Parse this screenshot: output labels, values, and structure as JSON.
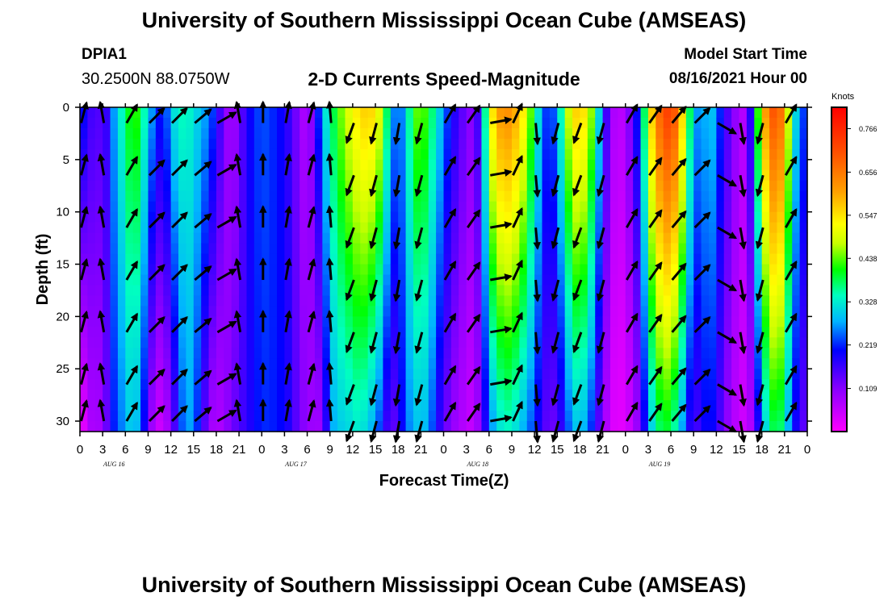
{
  "header": {
    "title": "University of Southern Mississippi Ocean Cube (AMSEAS)",
    "footer_title": "University of Southern Mississippi Ocean Cube (AMSEAS)",
    "station": "DPIA1",
    "coords": "30.2500N  88.0750W",
    "plot_title": "2-D Currents Speed-Magnitude",
    "model_label": "Model Start Time",
    "model_start": "08/16/2021 Hour 00"
  },
  "chart_data": {
    "type": "heatmap",
    "title": "2-D Currents Speed-Magnitude",
    "xlabel": "Forecast Time(Z)",
    "ylabel": "Depth (ft)",
    "x_ticks": [
      "0",
      "3",
      "6",
      "9",
      "12",
      "15",
      "18",
      "21",
      "0",
      "3",
      "6",
      "9",
      "12",
      "15",
      "18",
      "21",
      "0",
      "3",
      "6",
      "9",
      "12",
      "15",
      "18",
      "21",
      "0",
      "3",
      "6",
      "9",
      "12",
      "15",
      "18",
      "21",
      "0"
    ],
    "day_labels": [
      "AUG 16",
      "AUG 17",
      "AUG 18",
      "AUG 19"
    ],
    "y_ticks": [
      "0",
      "5",
      "10",
      "15",
      "20",
      "25",
      "30"
    ],
    "ylim": [
      0,
      31
    ],
    "hours_range": [
      0,
      96
    ],
    "colorbar": {
      "title": "Knots",
      "labels": [
        "0.766",
        "0.656",
        "0.547",
        "0.438",
        "0.328",
        "0.219",
        "0.109"
      ],
      "range": [
        0,
        0.82
      ]
    },
    "speed_profile": [
      {
        "hour": 0,
        "surface": 0.28,
        "bottom": 0.0
      },
      {
        "hour": 1,
        "surface": 0.13,
        "bottom": 0.05
      },
      {
        "hour": 2,
        "surface": 0.19,
        "bottom": 0.1
      },
      {
        "hour": 3,
        "surface": 0.11,
        "bottom": 0.06
      },
      {
        "hour": 4,
        "surface": 0.23,
        "bottom": 0.2
      },
      {
        "hour": 5,
        "surface": 0.31,
        "bottom": 0.23
      },
      {
        "hour": 6,
        "surface": 0.37,
        "bottom": 0.28
      },
      {
        "hour": 7,
        "surface": 0.44,
        "bottom": 0.31
      },
      {
        "hour": 8,
        "surface": 0.4,
        "bottom": 0.26
      },
      {
        "hour": 9,
        "surface": 0.3,
        "bottom": 0.13
      },
      {
        "hour": 10,
        "surface": 0.24,
        "bottom": 0.04
      },
      {
        "hour": 11,
        "surface": 0.19,
        "bottom": 0.05
      },
      {
        "hour": 12,
        "surface": 0.3,
        "bottom": 0.1
      },
      {
        "hour": 13,
        "surface": 0.34,
        "bottom": 0.2
      },
      {
        "hour": 14,
        "surface": 0.35,
        "bottom": 0.28
      },
      {
        "hour": 15,
        "surface": 0.32,
        "bottom": 0.26
      },
      {
        "hour": 16,
        "surface": 0.29,
        "bottom": 0.18
      },
      {
        "hour": 17,
        "surface": 0.26,
        "bottom": 0.1
      },
      {
        "hour": 18,
        "surface": 0.2,
        "bottom": 0.06
      },
      {
        "hour": 19,
        "surface": 0.12,
        "bottom": 0.09
      },
      {
        "hour": 20,
        "surface": 0.07,
        "bottom": 0.12
      },
      {
        "hour": 21,
        "surface": 0.12,
        "bottom": 0.15
      },
      {
        "hour": 22,
        "surface": 0.18,
        "bottom": 0.17
      },
      {
        "hour": 23,
        "surface": 0.22,
        "bottom": 0.2
      },
      {
        "hour": 24,
        "surface": 0.24,
        "bottom": 0.22
      },
      {
        "hour": 25,
        "surface": 0.23,
        "bottom": 0.22
      },
      {
        "hour": 26,
        "surface": 0.21,
        "bottom": 0.21
      },
      {
        "hour": 27,
        "surface": 0.19,
        "bottom": 0.2
      },
      {
        "hour": 28,
        "surface": 0.15,
        "bottom": 0.17
      },
      {
        "hour": 29,
        "surface": 0.1,
        "bottom": 0.12
      },
      {
        "hour": 30,
        "surface": 0.06,
        "bottom": 0.1
      },
      {
        "hour": 31,
        "surface": 0.15,
        "bottom": 0.08
      },
      {
        "hour": 32,
        "surface": 0.29,
        "bottom": 0.09
      },
      {
        "hour": 33,
        "surface": 0.36,
        "bottom": 0.26
      },
      {
        "hour": 34,
        "surface": 0.42,
        "bottom": 0.3
      },
      {
        "hour": 35,
        "surface": 0.48,
        "bottom": 0.3
      },
      {
        "hour": 36,
        "surface": 0.52,
        "bottom": 0.32
      },
      {
        "hour": 37,
        "surface": 0.56,
        "bottom": 0.33
      },
      {
        "hour": 38,
        "surface": 0.57,
        "bottom": 0.3
      },
      {
        "hour": 39,
        "surface": 0.55,
        "bottom": 0.26
      },
      {
        "hour": 40,
        "surface": 0.46,
        "bottom": 0.2
      },
      {
        "hour": 41,
        "surface": 0.3,
        "bottom": 0.12
      },
      {
        "hour": 42,
        "surface": 0.22,
        "bottom": 0.16
      },
      {
        "hour": 43,
        "surface": 0.3,
        "bottom": 0.24
      },
      {
        "hour": 44,
        "surface": 0.42,
        "bottom": 0.28
      },
      {
        "hour": 45,
        "surface": 0.46,
        "bottom": 0.3
      },
      {
        "hour": 46,
        "surface": 0.4,
        "bottom": 0.27
      },
      {
        "hour": 47,
        "surface": 0.34,
        "bottom": 0.2
      },
      {
        "hour": 48,
        "surface": 0.26,
        "bottom": 0.14
      },
      {
        "hour": 49,
        "surface": 0.2,
        "bottom": 0.1
      },
      {
        "hour": 50,
        "surface": 0.16,
        "bottom": 0.08
      },
      {
        "hour": 51,
        "surface": 0.12,
        "bottom": 0.06
      },
      {
        "hour": 52,
        "surface": 0.1,
        "bottom": 0.05
      },
      {
        "hour": 53,
        "surface": 0.22,
        "bottom": 0.12
      },
      {
        "hour": 54,
        "surface": 0.5,
        "bottom": 0.24
      },
      {
        "hour": 55,
        "surface": 0.6,
        "bottom": 0.3
      },
      {
        "hour": 56,
        "surface": 0.64,
        "bottom": 0.34
      },
      {
        "hour": 57,
        "surface": 0.62,
        "bottom": 0.33
      },
      {
        "hour": 58,
        "surface": 0.58,
        "bottom": 0.3
      },
      {
        "hour": 59,
        "surface": 0.5,
        "bottom": 0.26
      },
      {
        "hour": 60,
        "surface": 0.38,
        "bottom": 0.22
      },
      {
        "hour": 61,
        "surface": 0.26,
        "bottom": 0.16
      },
      {
        "hour": 62,
        "surface": 0.2,
        "bottom": 0.12
      },
      {
        "hour": 63,
        "surface": 0.28,
        "bottom": 0.14
      },
      {
        "hour": 64,
        "surface": 0.42,
        "bottom": 0.2
      },
      {
        "hour": 65,
        "surface": 0.55,
        "bottom": 0.28
      },
      {
        "hour": 66,
        "surface": 0.58,
        "bottom": 0.3
      },
      {
        "hour": 67,
        "surface": 0.52,
        "bottom": 0.26
      },
      {
        "hour": 68,
        "surface": 0.4,
        "bottom": 0.18
      },
      {
        "hour": 69,
        "surface": 0.22,
        "bottom": 0.1
      },
      {
        "hour": 70,
        "surface": 0.1,
        "bottom": 0.04
      },
      {
        "hour": 71,
        "surface": 0.05,
        "bottom": 0.02
      },
      {
        "hour": 72,
        "surface": 0.08,
        "bottom": 0.03
      },
      {
        "hour": 73,
        "surface": 0.15,
        "bottom": 0.06
      },
      {
        "hour": 74,
        "surface": 0.26,
        "bottom": 0.12
      },
      {
        "hour": 75,
        "surface": 0.5,
        "bottom": 0.26
      },
      {
        "hour": 76,
        "surface": 0.64,
        "bottom": 0.35
      },
      {
        "hour": 77,
        "surface": 0.72,
        "bottom": 0.4
      },
      {
        "hour": 78,
        "surface": 0.74,
        "bottom": 0.38
      },
      {
        "hour": 79,
        "surface": 0.66,
        "bottom": 0.32
      },
      {
        "hour": 80,
        "surface": 0.46,
        "bottom": 0.22
      },
      {
        "hour": 81,
        "surface": 0.3,
        "bottom": 0.14
      },
      {
        "hour": 82,
        "surface": 0.24,
        "bottom": 0.18
      },
      {
        "hour": 83,
        "surface": 0.32,
        "bottom": 0.22
      },
      {
        "hour": 84,
        "surface": 0.26,
        "bottom": 0.18
      },
      {
        "hour": 85,
        "surface": 0.18,
        "bottom": 0.12
      },
      {
        "hour": 86,
        "surface": 0.12,
        "bottom": 0.08
      },
      {
        "hour": 87,
        "surface": 0.08,
        "bottom": 0.05
      },
      {
        "hour": 88,
        "surface": 0.06,
        "bottom": 0.04
      },
      {
        "hour": 89,
        "surface": 0.3,
        "bottom": 0.1
      },
      {
        "hour": 90,
        "surface": 0.55,
        "bottom": 0.26
      },
      {
        "hour": 91,
        "surface": 0.68,
        "bottom": 0.36
      },
      {
        "hour": 92,
        "surface": 0.72,
        "bottom": 0.4
      },
      {
        "hour": 93,
        "surface": 0.62,
        "bottom": 0.34
      },
      {
        "hour": 94,
        "surface": 0.36,
        "bottom": 0.22
      },
      {
        "hour": 95,
        "surface": 0.26,
        "bottom": 0.16
      },
      {
        "hour": 96,
        "surface": 0.2,
        "bottom": 0.12
      }
    ],
    "vectors": {
      "depths_ft": [
        1.5,
        6.5,
        11.5,
        16.5,
        21.5,
        26.5,
        30
      ],
      "columns": [
        {
          "hour": 0,
          "angle_deg": 75
        },
        {
          "hour": 3,
          "angle_deg": 100
        },
        {
          "hour": 6,
          "angle_deg": 60
        },
        {
          "hour": 9,
          "angle_deg": 45
        },
        {
          "hour": 12,
          "angle_deg": 45
        },
        {
          "hour": 15,
          "angle_deg": 40
        },
        {
          "hour": 18,
          "angle_deg": 30
        },
        {
          "hour": 21,
          "angle_deg": 100
        },
        {
          "hour": 24,
          "angle_deg": 90
        },
        {
          "hour": 27,
          "angle_deg": 80
        },
        {
          "hour": 30,
          "angle_deg": 75
        },
        {
          "hour": 33,
          "angle_deg": 95
        },
        {
          "hour": 36,
          "angle_deg": 250
        },
        {
          "hour": 39,
          "angle_deg": 255
        },
        {
          "hour": 42,
          "angle_deg": 260
        },
        {
          "hour": 45,
          "angle_deg": 255
        },
        {
          "hour": 48,
          "angle_deg": 60
        },
        {
          "hour": 51,
          "angle_deg": 55
        },
        {
          "hour": 54,
          "angle_deg": 10
        },
        {
          "hour": 57,
          "angle_deg": 65
        },
        {
          "hour": 60,
          "angle_deg": 275
        },
        {
          "hour": 63,
          "angle_deg": 255
        },
        {
          "hour": 66,
          "angle_deg": 250
        },
        {
          "hour": 69,
          "angle_deg": 255
        },
        {
          "hour": 72,
          "angle_deg": 60
        },
        {
          "hour": 75,
          "angle_deg": 55
        },
        {
          "hour": 78,
          "angle_deg": 50
        },
        {
          "hour": 81,
          "angle_deg": 45
        },
        {
          "hour": 84,
          "angle_deg": 330
        },
        {
          "hour": 87,
          "angle_deg": 280
        },
        {
          "hour": 90,
          "angle_deg": 255
        },
        {
          "hour": 93,
          "angle_deg": 60
        }
      ]
    }
  }
}
